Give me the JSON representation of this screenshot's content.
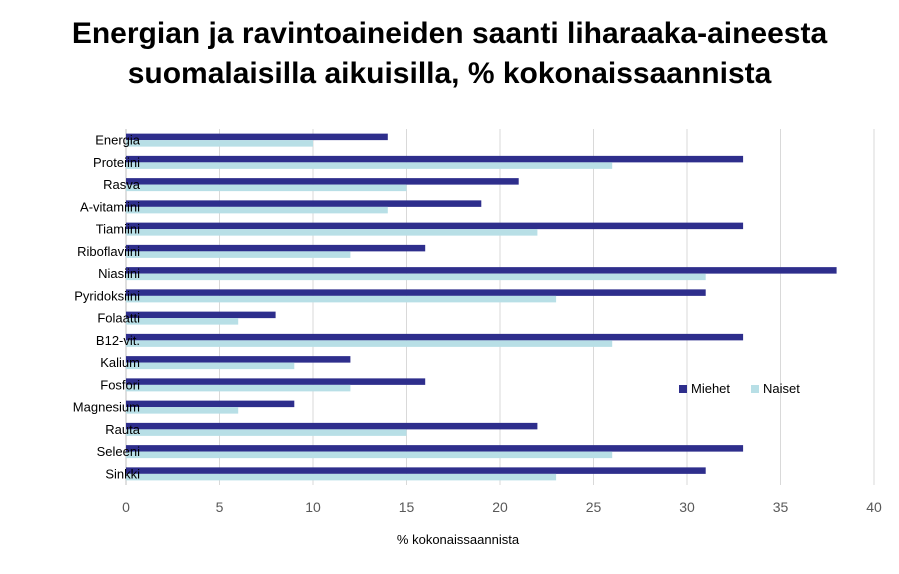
{
  "chart_data": {
    "type": "bar",
    "orientation": "horizontal",
    "title_line1": "Energian ja ravintoaineiden saanti liharaaka-aineesta",
    "title_line2": "suomalaisilla aikuisilla, % kokonaissaannista",
    "xlabel": "% kokonaissaannista",
    "ylabel": "",
    "xlim": [
      0,
      40
    ],
    "x_ticks": [
      0,
      5,
      10,
      15,
      20,
      25,
      30,
      35,
      40
    ],
    "grid": "vertical",
    "legend_position": "right",
    "categories": [
      "Energia",
      "Proteiini",
      "Rasva",
      "A-vitamiini",
      "Tiamiini",
      "Riboflaviini",
      "Niasiini",
      "Pyridoksiini",
      "Folaatti",
      "B12-vit.",
      "Kalium",
      "Fosfori",
      "Magnesium",
      "Rauta",
      "Seleeni",
      "Sinkki"
    ],
    "series": [
      {
        "name": "Miehet",
        "color": "#2e2e8c",
        "values": [
          14,
          33,
          21,
          19,
          33,
          16,
          38,
          31,
          8,
          33,
          12,
          16,
          9,
          22,
          33,
          31
        ]
      },
      {
        "name": "Naiset",
        "color": "#b8dfe6",
        "values": [
          10,
          26,
          15,
          14,
          22,
          12,
          31,
          23,
          6,
          26,
          9,
          12,
          6,
          15,
          26,
          23
        ]
      }
    ]
  }
}
